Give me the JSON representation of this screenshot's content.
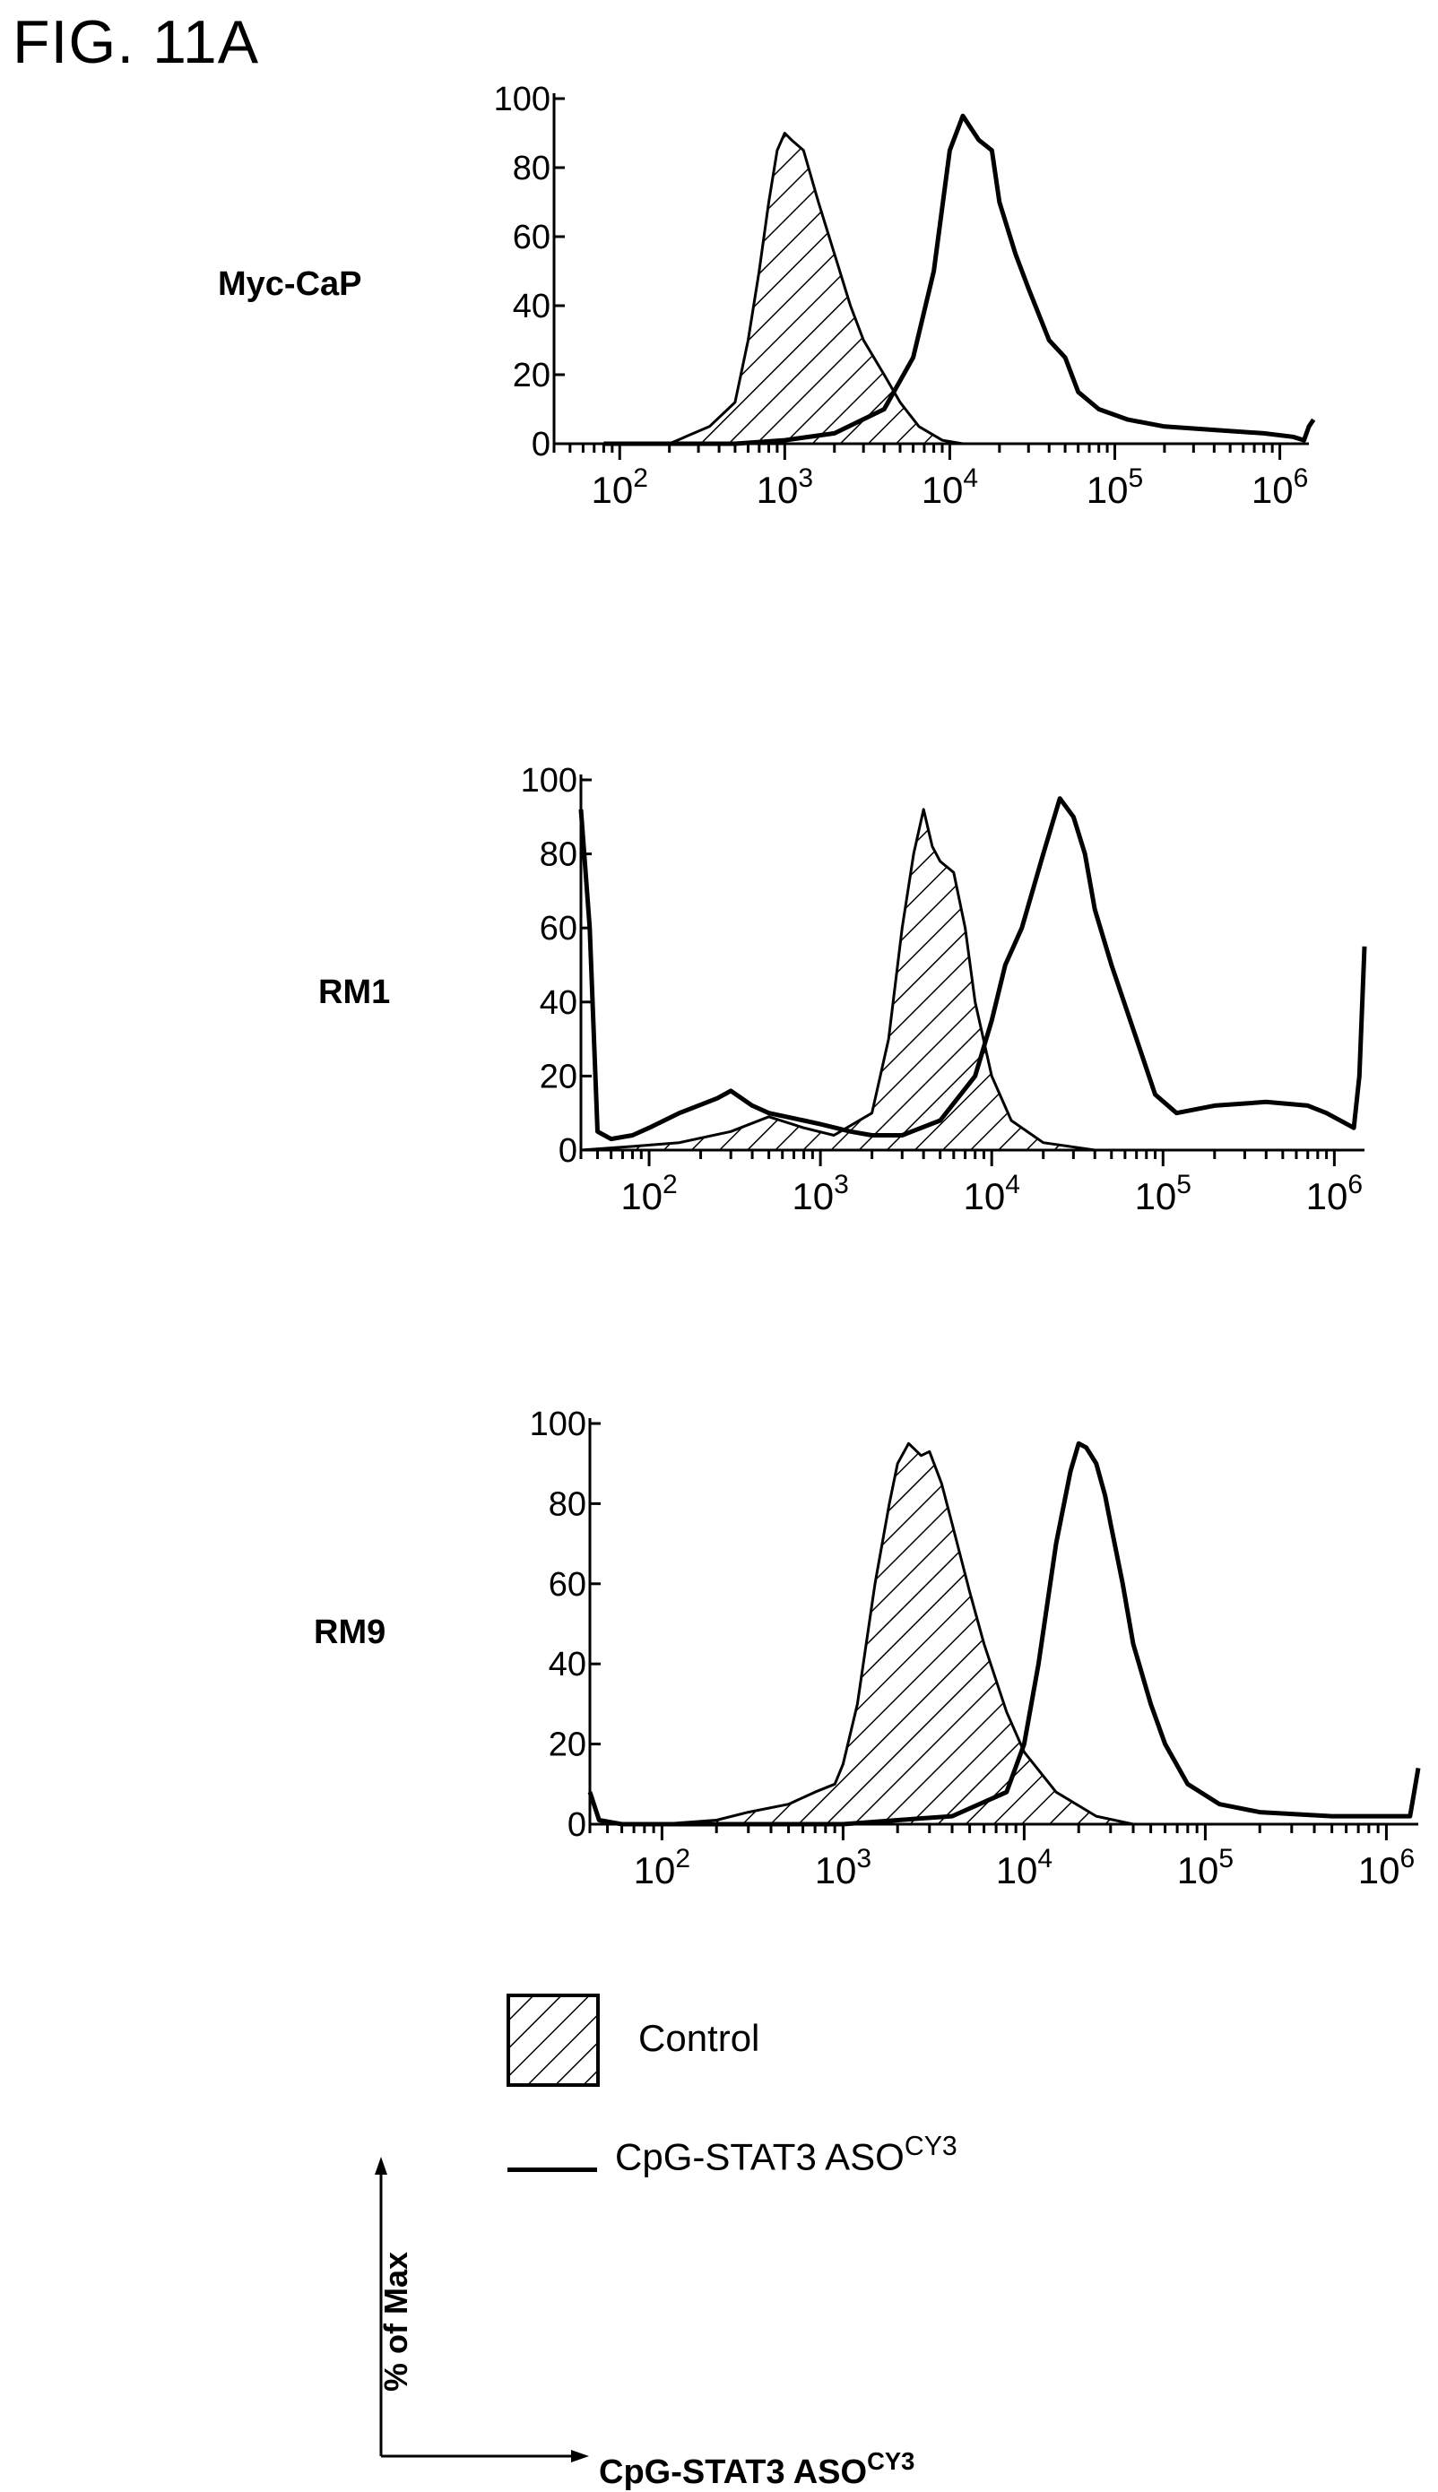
{
  "figure_title": "FIG. 11A",
  "chart_data": [
    {
      "type": "area",
      "panel_label": "Myc-CaP",
      "x_scale": "log",
      "xlim": [
        40,
        1500000
      ],
      "ylim": [
        0,
        100
      ],
      "y_ticks": [
        "100",
        "80",
        "60",
        "40",
        "20",
        "0"
      ],
      "x_ticks": [
        "10^2",
        "10^3",
        "10^4",
        "10^5",
        "10^6"
      ],
      "series": [
        {
          "name": "Control",
          "style": "hatched-fill",
          "points": [
            [
              200,
              0
            ],
            [
              250,
              2
            ],
            [
              350,
              5
            ],
            [
              500,
              12
            ],
            [
              600,
              30
            ],
            [
              700,
              50
            ],
            [
              800,
              70
            ],
            [
              900,
              85
            ],
            [
              1000,
              90
            ],
            [
              1100,
              88
            ],
            [
              1300,
              85
            ],
            [
              1600,
              70
            ],
            [
              2000,
              55
            ],
            [
              2500,
              40
            ],
            [
              3000,
              30
            ],
            [
              4000,
              20
            ],
            [
              5000,
              12
            ],
            [
              6500,
              5
            ],
            [
              9000,
              1
            ],
            [
              12000,
              0
            ]
          ]
        },
        {
          "name": "CpG-STAT3 ASOCY3",
          "style": "line",
          "points": [
            [
              80,
              0
            ],
            [
              500,
              0
            ],
            [
              1000,
              1
            ],
            [
              2000,
              3
            ],
            [
              4000,
              10
            ],
            [
              6000,
              25
            ],
            [
              8000,
              50
            ],
            [
              10000,
              85
            ],
            [
              12000,
              95
            ],
            [
              15000,
              88
            ],
            [
              18000,
              85
            ],
            [
              20000,
              70
            ],
            [
              25000,
              55
            ],
            [
              30000,
              45
            ],
            [
              40000,
              30
            ],
            [
              50000,
              25
            ],
            [
              60000,
              15
            ],
            [
              80000,
              10
            ],
            [
              120000,
              7
            ],
            [
              200000,
              5
            ],
            [
              400000,
              4
            ],
            [
              800000,
              3
            ],
            [
              1200000,
              2
            ],
            [
              1400000,
              1
            ],
            [
              1500000,
              5
            ],
            [
              1600000,
              7
            ]
          ]
        }
      ]
    },
    {
      "type": "area",
      "panel_label": "RM1",
      "x_scale": "log",
      "xlim": [
        40,
        1500000
      ],
      "ylim": [
        0,
        100
      ],
      "y_ticks": [
        "100",
        "80",
        "60",
        "40",
        "20",
        "0"
      ],
      "x_ticks": [
        "10^2",
        "10^3",
        "10^4",
        "10^5",
        "10^6"
      ],
      "series": [
        {
          "name": "Control",
          "style": "hatched-fill",
          "points": [
            [
              40,
              0
            ],
            [
              80,
              1
            ],
            [
              150,
              2
            ],
            [
              300,
              5
            ],
            [
              500,
              9
            ],
            [
              800,
              6
            ],
            [
              1200,
              4
            ],
            [
              2000,
              10
            ],
            [
              2500,
              30
            ],
            [
              3000,
              60
            ],
            [
              3500,
              80
            ],
            [
              4000,
              92
            ],
            [
              4500,
              82
            ],
            [
              5000,
              78
            ],
            [
              6000,
              75
            ],
            [
              7000,
              60
            ],
            [
              8000,
              40
            ],
            [
              10000,
              20
            ],
            [
              13000,
              8
            ],
            [
              20000,
              2
            ],
            [
              40000,
              0
            ]
          ]
        },
        {
          "name": "CpG-STAT3 ASOCY3",
          "style": "line",
          "points": [
            [
              40,
              92
            ],
            [
              45,
              60
            ],
            [
              50,
              5
            ],
            [
              60,
              3
            ],
            [
              80,
              4
            ],
            [
              100,
              6
            ],
            [
              150,
              10
            ],
            [
              250,
              14
            ],
            [
              300,
              16
            ],
            [
              400,
              12
            ],
            [
              500,
              10
            ],
            [
              800,
              8
            ],
            [
              1000,
              7
            ],
            [
              1500,
              5
            ],
            [
              2000,
              4
            ],
            [
              3000,
              4
            ],
            [
              5000,
              8
            ],
            [
              8000,
              20
            ],
            [
              10000,
              35
            ],
            [
              12000,
              50
            ],
            [
              15000,
              60
            ],
            [
              20000,
              80
            ],
            [
              25000,
              95
            ],
            [
              30000,
              90
            ],
            [
              35000,
              80
            ],
            [
              40000,
              65
            ],
            [
              50000,
              50
            ],
            [
              70000,
              30
            ],
            [
              90000,
              15
            ],
            [
              120000,
              10
            ],
            [
              200000,
              12
            ],
            [
              400000,
              13
            ],
            [
              700000,
              12
            ],
            [
              900000,
              10
            ],
            [
              1300000,
              6
            ],
            [
              1400000,
              20
            ],
            [
              1500000,
              55
            ]
          ]
        }
      ]
    },
    {
      "type": "area",
      "panel_label": "RM9",
      "x_scale": "log",
      "xlim": [
        40,
        1500000
      ],
      "ylim": [
        0,
        100
      ],
      "y_ticks": [
        "100",
        "80",
        "60",
        "40",
        "20",
        "0"
      ],
      "x_ticks": [
        "10^2",
        "10^3",
        "10^4",
        "10^5",
        "10^6"
      ],
      "series": [
        {
          "name": "Control",
          "style": "hatched-fill",
          "points": [
            [
              100,
              0
            ],
            [
              200,
              1
            ],
            [
              300,
              3
            ],
            [
              500,
              5
            ],
            [
              700,
              8
            ],
            [
              900,
              10
            ],
            [
              1000,
              15
            ],
            [
              1200,
              30
            ],
            [
              1500,
              60
            ],
            [
              1800,
              80
            ],
            [
              2000,
              90
            ],
            [
              2300,
              95
            ],
            [
              2700,
              92
            ],
            [
              3000,
              93
            ],
            [
              3500,
              85
            ],
            [
              4000,
              75
            ],
            [
              5000,
              58
            ],
            [
              6000,
              45
            ],
            [
              8000,
              28
            ],
            [
              10000,
              18
            ],
            [
              15000,
              8
            ],
            [
              25000,
              2
            ],
            [
              40000,
              0
            ]
          ]
        },
        {
          "name": "CpG-STAT3 ASOCY3",
          "style": "line",
          "points": [
            [
              40,
              8
            ],
            [
              45,
              1
            ],
            [
              60,
              0
            ],
            [
              200,
              0
            ],
            [
              1000,
              0
            ],
            [
              2000,
              1
            ],
            [
              4000,
              2
            ],
            [
              8000,
              8
            ],
            [
              10000,
              20
            ],
            [
              12000,
              40
            ],
            [
              15000,
              70
            ],
            [
              18000,
              88
            ],
            [
              20000,
              95
            ],
            [
              22000,
              94
            ],
            [
              25000,
              90
            ],
            [
              28000,
              82
            ],
            [
              30000,
              75
            ],
            [
              35000,
              60
            ],
            [
              40000,
              45
            ],
            [
              50000,
              30
            ],
            [
              60000,
              20
            ],
            [
              80000,
              10
            ],
            [
              120000,
              5
            ],
            [
              200000,
              3
            ],
            [
              500000,
              2
            ],
            [
              1000000,
              2
            ],
            [
              1350000,
              2
            ],
            [
              1400000,
              6
            ],
            [
              1500000,
              14
            ]
          ]
        }
      ]
    }
  ],
  "legend": {
    "control_label": "Control",
    "aso_label": "CpG-STAT3 ASO",
    "aso_sup": "CY3"
  },
  "axis_key": {
    "y_label": "% of Max",
    "x_label": "CpG-STAT3 ASO",
    "x_sup": "CY3"
  }
}
